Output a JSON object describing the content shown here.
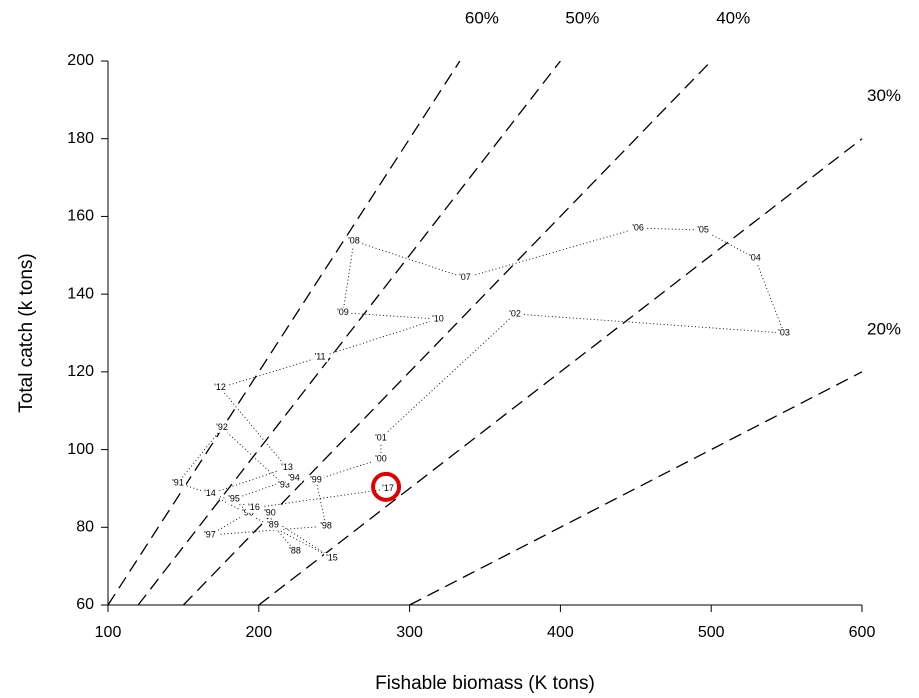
{
  "chart_data": {
    "type": "scatter",
    "x_label": "Fishable biomass (K tons)",
    "y_label": "Total catch (k tons)",
    "x": [
      224,
      209.4,
      207.4,
      146.4,
      175.6,
      216.7,
      223.3,
      183.6,
      192.8,
      167.6,
      244.6,
      237.9,
      281,
      281,
      369.9,
      548.3,
      529,
      494.6,
      451.5,
      336.7,
      263.1,
      255.8,
      318.8,
      240.6,
      174.3,
      218.7,
      167.6,
      248.5,
      196.8,
      285.7
    ],
    "values": [
      73.9,
      80.6,
      83.7,
      91.4,
      105.6,
      90.9,
      92.7,
      87.3,
      83.7,
      78.0,
      80.3,
      92.2,
      97.6,
      103.0,
      134.9,
      130.0,
      149.3,
      156.5,
      157.0,
      144.2,
      153.7,
      135.2,
      133.6,
      123.8,
      115.9,
      95.3,
      88.6,
      72.1,
      85.0,
      89.9
    ],
    "point_labels": [
      "'88",
      "'89",
      "'90",
      "'91",
      "'92",
      "'93",
      "'94",
      "'95",
      "'96",
      "'97",
      "'98",
      "'99",
      "'00",
      "'01",
      "'02",
      "'03",
      "'04",
      "'05",
      "'06",
      "'07",
      "'08",
      "'09",
      "'10",
      "'11",
      "'12",
      "'13",
      "'14",
      "'15",
      "'16",
      "'17"
    ],
    "reference_lines": [
      {
        "label": "60%",
        "rate": 60
      },
      {
        "label": "50%",
        "rate": 50
      },
      {
        "label": "40%",
        "rate": 40
      },
      {
        "label": "30%",
        "rate": 30
      },
      {
        "label": "20%",
        "rate": 20
      }
    ],
    "xlim": [
      100,
      600
    ],
    "xticks": [
      100,
      200,
      300,
      400,
      500,
      600
    ],
    "ylim": [
      60,
      200
    ],
    "yticks": [
      60,
      80,
      100,
      120,
      140,
      160,
      180,
      200
    ],
    "grid": false,
    "line_color": "#000000",
    "highlight_color": "#e00000"
  }
}
